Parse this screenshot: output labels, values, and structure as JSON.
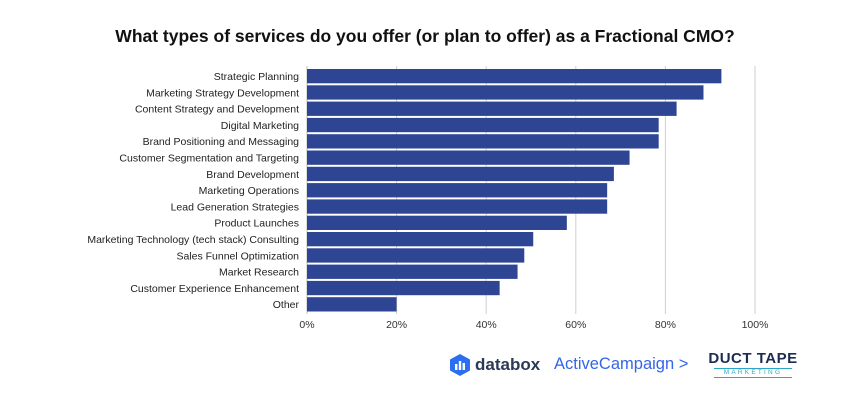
{
  "chart_data": {
    "type": "bar",
    "orientation": "horizontal",
    "title": "What types of services do you offer (or plan to offer) as a Fractional CMO?",
    "categories": [
      "Strategic Planning",
      "Marketing Strategy Development",
      "Content Strategy and Development",
      "Digital Marketing",
      "Brand Positioning and Messaging",
      "Customer Segmentation and Targeting",
      "Brand Development",
      "Marketing Operations",
      "Lead Generation Strategies",
      "Product Launches",
      "Marketing Technology (tech stack) Consulting",
      "Sales Funnel Optimization",
      "Market Research",
      "Customer Experience Enhancement",
      "Other"
    ],
    "values": [
      92.5,
      88.5,
      82.5,
      78.5,
      78.5,
      72,
      68.5,
      67,
      67,
      58,
      50.5,
      48.5,
      47,
      43,
      20
    ],
    "xlim": [
      0,
      100
    ],
    "xticks": [
      0,
      20,
      40,
      60,
      80,
      100
    ],
    "xtick_labels": [
      "0%",
      "20%",
      "40%",
      "60%",
      "80%",
      "100%"
    ],
    "grid": true,
    "bar_color": "#2e4593"
  },
  "logos": {
    "databox": "databox",
    "activecampaign": "ActiveCampaign >",
    "ducttape_main": "DUCT TAPE",
    "ducttape_sub": "MARKETING"
  }
}
